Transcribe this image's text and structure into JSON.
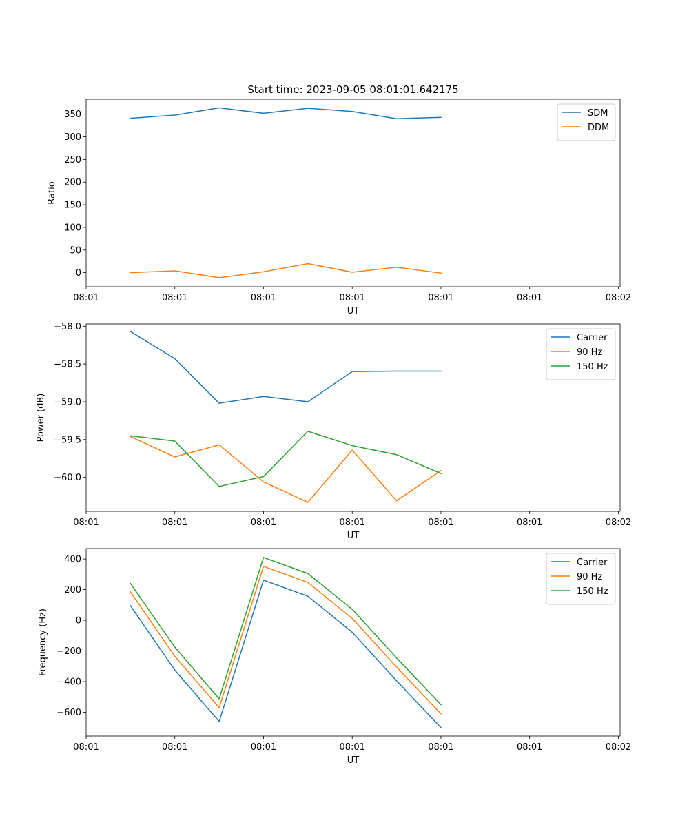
{
  "figure_title": "Start time: 2023-09-05 08:01:01.642175",
  "colors": {
    "blue": "#1f77b4",
    "orange": "#ff7f0e",
    "green": "#2ca02c",
    "axis": "#000000",
    "legend_border": "#cccccc"
  },
  "chart_data": [
    {
      "type": "line",
      "title": "Start time: 2023-09-05 08:01:01.642175",
      "xlabel": "UT",
      "ylabel": "Ratio",
      "xlim": [
        0.0,
        6.02
      ],
      "ylim": [
        -31,
        383
      ],
      "x_ticks": [
        0,
        1,
        2,
        3,
        4,
        5,
        6
      ],
      "x_tick_labels": [
        "08:01",
        "08:01",
        "08:01",
        "08:01",
        "08:01",
        "08:01",
        "08:02"
      ],
      "y_ticks": [
        0,
        50,
        100,
        150,
        200,
        250,
        300,
        350
      ],
      "y_tick_labels": [
        "0",
        "50",
        "100",
        "150",
        "200",
        "250",
        "300",
        "350"
      ],
      "grid": false,
      "legend_position": "top-right",
      "x": [
        0.5,
        1.0,
        1.5,
        2.0,
        2.5,
        3.0,
        3.5,
        4.0
      ],
      "series": [
        {
          "name": "SDM",
          "color": "#1f77b4",
          "values": [
            341,
            348,
            364,
            352,
            363,
            356,
            340,
            343
          ]
        },
        {
          "name": "DDM",
          "color": "#ff7f0e",
          "values": [
            0,
            4,
            -11,
            2,
            20,
            1,
            12,
            -1
          ]
        }
      ]
    },
    {
      "type": "line",
      "title": "",
      "xlabel": "UT",
      "ylabel": "Power (dB)",
      "xlim": [
        0.0,
        6.02
      ],
      "ylim": [
        -60.45,
        -57.97
      ],
      "x_ticks": [
        0,
        1,
        2,
        3,
        4,
        5,
        6
      ],
      "x_tick_labels": [
        "08:01",
        "08:01",
        "08:01",
        "08:01",
        "08:01",
        "08:01",
        "08:02"
      ],
      "y_ticks": [
        -60.0,
        -59.5,
        -59.0,
        -58.5,
        -58.0
      ],
      "y_tick_labels": [
        "−60.0",
        "−59.5",
        "−59.0",
        "−58.5",
        "−58.0"
      ],
      "grid": false,
      "legend_position": "top-right",
      "x": [
        0.5,
        1.0,
        1.5,
        2.0,
        2.5,
        3.0,
        3.5,
        4.0
      ],
      "series": [
        {
          "name": "Carrier",
          "color": "#1f77b4",
          "values": [
            -58.07,
            -58.43,
            -59.02,
            -58.93,
            -59.0,
            -58.6,
            -58.595,
            -58.595
          ]
        },
        {
          "name": "90 Hz",
          "color": "#ff7f0e",
          "values": [
            -59.46,
            -59.73,
            -59.57,
            -60.06,
            -60.33,
            -59.64,
            -60.31,
            -59.91
          ]
        },
        {
          "name": "150 Hz",
          "color": "#2ca02c",
          "values": [
            -59.45,
            -59.52,
            -60.12,
            -59.99,
            -59.39,
            -59.58,
            -59.7,
            -59.95
          ]
        }
      ]
    },
    {
      "type": "line",
      "title": "",
      "xlabel": "UT",
      "ylabel": "Frequency (Hz)",
      "xlim": [
        0.0,
        6.02
      ],
      "ylim": [
        -755,
        468
      ],
      "x_ticks": [
        0,
        1,
        2,
        3,
        4,
        5,
        6
      ],
      "x_tick_labels": [
        "08:01",
        "08:01",
        "08:01",
        "08:01",
        "08:01",
        "08:01",
        "08:02"
      ],
      "y_ticks": [
        -600,
        -400,
        -200,
        0,
        200,
        400
      ],
      "y_tick_labels": [
        "−600",
        "−400",
        "−200",
        "0",
        "200",
        "400"
      ],
      "grid": false,
      "legend_position": "top-right",
      "x": [
        0.5,
        1.0,
        1.5,
        2.0,
        2.5,
        3.0,
        3.5,
        4.0
      ],
      "series": [
        {
          "name": "Carrier",
          "color": "#1f77b4",
          "values": [
            95,
            -325,
            -660,
            262,
            157,
            -78,
            -395,
            -700
          ]
        },
        {
          "name": "90 Hz",
          "color": "#ff7f0e",
          "values": [
            185,
            -235,
            -570,
            352,
            247,
            12,
            -305,
            -610
          ]
        },
        {
          "name": "150 Hz",
          "color": "#2ca02c",
          "values": [
            240,
            -175,
            -512,
            410,
            305,
            72,
            -245,
            -550
          ]
        }
      ]
    }
  ]
}
